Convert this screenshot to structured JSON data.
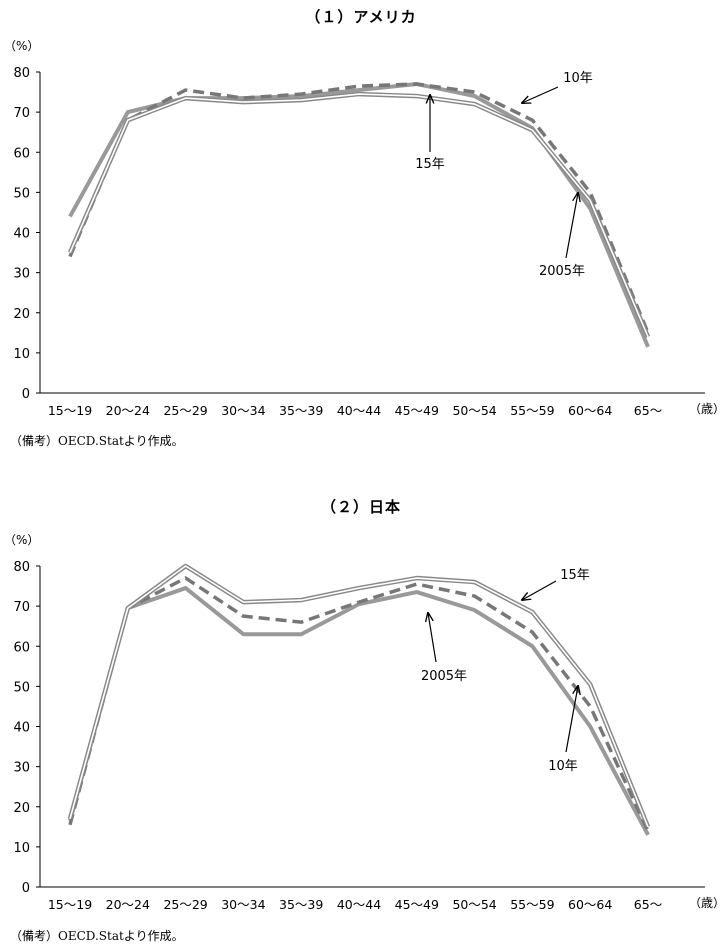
{
  "chart_data": [
    {
      "type": "line",
      "title": "（１）アメリカ",
      "y_unit_label": "（%）",
      "x_unit_label": "（歳）",
      "ylim": [
        0,
        80
      ],
      "yticks": [
        0,
        10,
        20,
        30,
        40,
        50,
        60,
        70,
        80
      ],
      "categories": [
        "15～19",
        "20～24",
        "25～29",
        "30～34",
        "35～39",
        "40～44",
        "45～49",
        "50～54",
        "55～59",
        "60～64",
        "65～"
      ],
      "series": [
        {
          "name": "2005年",
          "style": "solid-thick",
          "color": "#999999",
          "values": [
            44,
            70,
            73.5,
            73.5,
            74,
            75.5,
            77,
            74,
            66,
            46,
            11.5
          ]
        },
        {
          "name": "10年",
          "style": "dashed",
          "color": "#777777",
          "values": [
            34,
            68,
            75.5,
            73.5,
            74.5,
            76.5,
            77,
            75,
            68,
            50,
            15
          ]
        },
        {
          "name": "15年",
          "style": "double",
          "color": "#888888",
          "values": [
            35,
            68,
            73.5,
            72.5,
            73,
            74.5,
            74,
            72,
            65.5,
            48,
            14
          ]
        }
      ],
      "annotations": [
        {
          "text": "10年",
          "points_to": "10年"
        },
        {
          "text": "15年",
          "points_to": "15年"
        },
        {
          "text": "2005年",
          "points_to": "2005年"
        }
      ],
      "note": "（備考）OECD.Statより作成。",
      "grid": false
    },
    {
      "type": "line",
      "title": "（２）日本",
      "y_unit_label": "（%）",
      "x_unit_label": "（歳）",
      "ylim": [
        0,
        80
      ],
      "yticks": [
        0,
        10,
        20,
        30,
        40,
        50,
        60,
        70,
        80
      ],
      "categories": [
        "15～19",
        "20～24",
        "25～29",
        "30～34",
        "35～39",
        "40～44",
        "45～49",
        "50～54",
        "55～59",
        "60～64",
        "65～"
      ],
      "series": [
        {
          "name": "2005年",
          "style": "solid-thick",
          "color": "#999999",
          "values": [
            16.5,
            69.5,
            74.5,
            63,
            63,
            70.5,
            73.5,
            69,
            60,
            40,
            13
          ]
        },
        {
          "name": "10年",
          "style": "dashed",
          "color": "#777777",
          "values": [
            15.5,
            69.5,
            77,
            67.5,
            66,
            71,
            75.5,
            72.5,
            63.5,
            45,
            14
          ]
        },
        {
          "name": "15年",
          "style": "double",
          "color": "#888888",
          "values": [
            17,
            69.5,
            80,
            71,
            71.5,
            74.5,
            77,
            76,
            68.5,
            50.5,
            15
          ]
        }
      ],
      "annotations": [
        {
          "text": "15年",
          "points_to": "15年"
        },
        {
          "text": "2005年",
          "points_to": "2005年"
        },
        {
          "text": "10年",
          "points_to": "10年"
        }
      ],
      "note": "（備考）OECD.Statより作成。",
      "grid": false
    }
  ]
}
